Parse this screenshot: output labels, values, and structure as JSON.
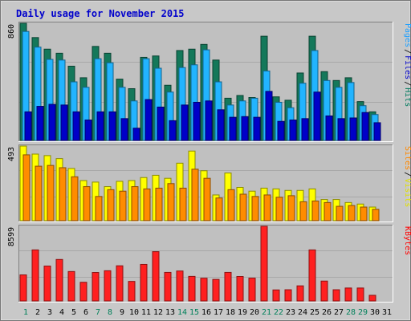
{
  "chart_data": [
    {
      "type": "bar",
      "title": "Daily usage for November 2015",
      "ytick": "860",
      "ymax": 860,
      "legend": [
        {
          "name": "Pages",
          "color": "#1ea0ff"
        },
        {
          "name": "Files",
          "color": "#0000cc"
        },
        {
          "name": "Hits",
          "color": "#007a5e"
        }
      ],
      "categories": [
        "1",
        "2",
        "3",
        "4",
        "5",
        "6",
        "7",
        "8",
        "9",
        "10",
        "11",
        "12",
        "13",
        "14",
        "15",
        "16",
        "17",
        "18",
        "19",
        "20",
        "21",
        "22",
        "23",
        "24",
        "25",
        "26",
        "27",
        "28",
        "29",
        "30",
        "31"
      ],
      "weekend_days": [
        "1",
        "7",
        "8",
        "14",
        "15",
        "21",
        "22",
        "28",
        "29"
      ],
      "series": [
        {
          "name": "Hits",
          "color": "#14785a",
          "values": [
            860,
            755,
            670,
            640,
            545,
            460,
            690,
            640,
            450,
            380,
            610,
            620,
            405,
            660,
            670,
            705,
            590,
            310,
            330,
            315,
            765,
            320,
            295,
            495,
            765,
            505,
            440,
            460,
            285,
            210,
            0
          ]
        },
        {
          "name": "Files",
          "color": "#22b4ff",
          "values": [
            800,
            685,
            595,
            590,
            430,
            390,
            600,
            570,
            390,
            290,
            600,
            530,
            355,
            535,
            555,
            665,
            430,
            260,
            290,
            310,
            510,
            280,
            240,
            420,
            660,
            440,
            390,
            425,
            255,
            190,
            0
          ]
        },
        {
          "name": "Pages",
          "color": "#0000c8",
          "values": [
            210,
            250,
            265,
            260,
            210,
            150,
            210,
            210,
            160,
            90,
            300,
            245,
            145,
            260,
            280,
            290,
            225,
            170,
            175,
            170,
            360,
            140,
            150,
            160,
            355,
            180,
            160,
            165,
            205,
            130,
            0
          ]
        }
      ]
    },
    {
      "type": "bar",
      "ytick": "493",
      "ymax": 493,
      "legend": [
        {
          "name": "Sites",
          "color": "#ff8800"
        },
        {
          "name": "Visits",
          "color": "#e0e000"
        }
      ],
      "categories": [
        "1",
        "2",
        "3",
        "4",
        "5",
        "6",
        "7",
        "8",
        "9",
        "10",
        "11",
        "12",
        "13",
        "14",
        "15",
        "16",
        "17",
        "18",
        "19",
        "20",
        "21",
        "22",
        "23",
        "24",
        "25",
        "26",
        "27",
        "28",
        "29",
        "30",
        "31"
      ],
      "series": [
        {
          "name": "Visits",
          "color": "#ffff00",
          "values": [
            493,
            440,
            430,
            410,
            345,
            265,
            255,
            225,
            260,
            265,
            285,
            300,
            280,
            380,
            460,
            330,
            170,
            315,
            220,
            195,
            215,
            210,
            200,
            200,
            210,
            140,
            140,
            120,
            110,
            90,
            0
          ]
        },
        {
          "name": "Sites",
          "color": "#ff8c00",
          "values": [
            435,
            360,
            365,
            350,
            290,
            225,
            160,
            205,
            195,
            225,
            210,
            215,
            245,
            215,
            340,
            280,
            150,
            205,
            175,
            160,
            170,
            155,
            165,
            125,
            130,
            120,
            95,
            100,
            90,
            75,
            0
          ]
        }
      ]
    },
    {
      "type": "bar",
      "ytick": "8599",
      "ymax": 8599,
      "legend": [
        {
          "name": "KBytes",
          "color": "#ff0000"
        }
      ],
      "categories": [
        "1",
        "2",
        "3",
        "4",
        "5",
        "6",
        "7",
        "8",
        "9",
        "10",
        "11",
        "12",
        "13",
        "14",
        "15",
        "16",
        "17",
        "18",
        "19",
        "20",
        "21",
        "22",
        "23",
        "24",
        "25",
        "26",
        "27",
        "28",
        "29",
        "30",
        "31"
      ],
      "series": [
        {
          "name": "KBytes",
          "color": "#ff2020",
          "values": [
            3000,
            5880,
            4020,
            4780,
            3390,
            2150,
            3280,
            3480,
            4050,
            2250,
            4210,
            5680,
            3290,
            3450,
            2830,
            2620,
            2480,
            3290,
            2820,
            2630,
            8599,
            1270,
            1290,
            1740,
            5880,
            2290,
            1290,
            1490,
            1490,
            650,
            0
          ]
        }
      ]
    }
  ]
}
